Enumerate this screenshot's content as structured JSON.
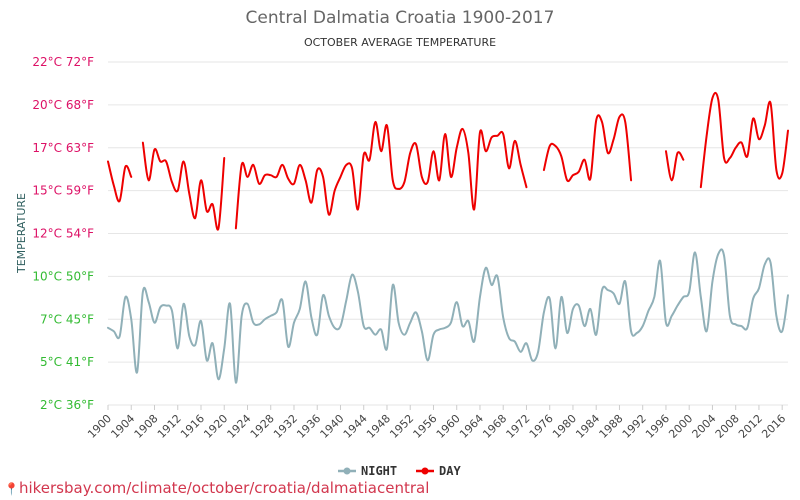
{
  "chart_data": {
    "type": "line",
    "title": "Central Dalmatia Croatia 1900-2017",
    "subtitle": "OCTOBER AVERAGE TEMPERATURE",
    "ylabel": "TEMPERATURE",
    "ylim": [
      2,
      22
    ],
    "y_ticks": [
      {
        "value": 2,
        "label": "2°C 36°F",
        "color": "#33bb33"
      },
      {
        "value": 4.5,
        "label": "5°C 41°F",
        "color": "#33bb33"
      },
      {
        "value": 7,
        "label": "7°C 45°F",
        "color": "#33bb33"
      },
      {
        "value": 9.5,
        "label": "10°C 50°F",
        "color": "#33bb33"
      },
      {
        "value": 12,
        "label": "12°C 54°F",
        "color": "#dd1166"
      },
      {
        "value": 14.5,
        "label": "15°C 59°F",
        "color": "#dd1166"
      },
      {
        "value": 17,
        "label": "17°C 63°F",
        "color": "#dd1166"
      },
      {
        "value": 19.5,
        "label": "20°C 68°F",
        "color": "#dd1166"
      },
      {
        "value": 22,
        "label": "22°C 72°F",
        "color": "#dd1166"
      }
    ],
    "x_start": 1900,
    "x_end": 2017,
    "x_ticks": [
      1900,
      1904,
      1908,
      1912,
      1916,
      1920,
      1924,
      1928,
      1932,
      1936,
      1940,
      1944,
      1948,
      1952,
      1956,
      1960,
      1964,
      1968,
      1972,
      1976,
      1980,
      1984,
      1988,
      1992,
      1996,
      2000,
      2004,
      2008,
      2012,
      2016
    ],
    "grid": true,
    "legend_position": "bottom-center",
    "series": [
      {
        "name": "NIGHT",
        "color": "#90b0b8",
        "years": [
          1900,
          1901,
          1902,
          1903,
          1904,
          1905,
          1906,
          1907,
          1908,
          1909,
          1910,
          1911,
          1912,
          1913,
          1914,
          1915,
          1916,
          1917,
          1918,
          1919,
          1920,
          1921,
          1922,
          1923,
          1924,
          1925,
          1926,
          1927,
          1928,
          1929,
          1930,
          1931,
          1932,
          1933,
          1934,
          1935,
          1936,
          1937,
          1938,
          1939,
          1940,
          1941,
          1942,
          1943,
          1944,
          1945,
          1946,
          1947,
          1948,
          1949,
          1950,
          1951,
          1952,
          1953,
          1954,
          1955,
          1956,
          1957,
          1958,
          1959,
          1960,
          1961,
          1962,
          1963,
          1964,
          1965,
          1966,
          1967,
          1968,
          1969,
          1970,
          1971,
          1972,
          1973,
          1974,
          1975,
          1976,
          1977,
          1978,
          1979,
          1980,
          1981,
          1982,
          1983,
          1984,
          1985,
          1986,
          1987,
          1988,
          1989,
          1990,
          1991,
          1992,
          1993,
          1994,
          1995,
          1996,
          1997,
          1998,
          1999,
          2000,
          2001,
          2002,
          2003,
          2004,
          2005,
          2006,
          2007,
          2008,
          2009,
          2010,
          2011,
          2012,
          2013,
          2014,
          2015,
          2016,
          2017
        ],
        "values": [
          6.5,
          6.3,
          6.0,
          8.3,
          7.0,
          3.9,
          8.6,
          8.0,
          6.8,
          7.7,
          7.8,
          7.5,
          5.3,
          7.9,
          6.0,
          5.5,
          6.9,
          4.6,
          5.6,
          3.5,
          5.3,
          7.9,
          3.3,
          7.2,
          7.9,
          6.8,
          6.7,
          7.0,
          7.2,
          7.4,
          8.1,
          5.4,
          6.8,
          7.6,
          9.2,
          7.1,
          6.1,
          8.4,
          7.2,
          6.5,
          6.6,
          8.1,
          9.6,
          8.6,
          6.6,
          6.5,
          6.1,
          6.4,
          5.3,
          9.0,
          6.8,
          6.1,
          6.8,
          7.4,
          6.3,
          4.6,
          6.1,
          6.4,
          6.5,
          6.8,
          8.0,
          6.6,
          6.9,
          5.7,
          8.3,
          10.0,
          9.0,
          9.5,
          7.1,
          5.9,
          5.7,
          5.1,
          5.6,
          4.6,
          5.1,
          7.4,
          8.2,
          5.3,
          8.3,
          6.2,
          7.6,
          7.8,
          6.6,
          7.6,
          6.1,
          8.7,
          8.7,
          8.5,
          7.9,
          9.2,
          6.3,
          6.2,
          6.6,
          7.5,
          8.3,
          10.4,
          6.8,
          7.2,
          7.8,
          8.3,
          8.6,
          10.9,
          8.3,
          6.3,
          9.2,
          10.8,
          10.7,
          7.2,
          6.7,
          6.6,
          6.5,
          8.2,
          8.8,
          10.2,
          10.3,
          7.2,
          6.3,
          8.4
        ]
      },
      {
        "name": "DAY",
        "color": "#ee0000",
        "years": [
          1900,
          1901,
          1902,
          1903,
          1904,
          null,
          1906,
          1907,
          1908,
          1909,
          1910,
          1911,
          1912,
          1913,
          1914,
          1915,
          1916,
          1917,
          1918,
          1919,
          1920,
          1921,
          null,
          1922,
          1923,
          1924,
          1925,
          1926,
          1927,
          1928,
          1929,
          1930,
          1931,
          1932,
          1933,
          1934,
          1935,
          1936,
          1937,
          1938,
          1939,
          1940,
          1941,
          1942,
          1943,
          1944,
          1945,
          1946,
          1947,
          1948,
          1949,
          1950,
          1951,
          1952,
          1953,
          1954,
          1955,
          1956,
          1957,
          1958,
          1959,
          1960,
          1961,
          1962,
          1963,
          1964,
          1965,
          1966,
          1967,
          1968,
          1969,
          1970,
          1971,
          1972,
          1973,
          null,
          1975,
          1976,
          1977,
          1978,
          1979,
          1980,
          1981,
          1982,
          1983,
          1984,
          1985,
          1986,
          1987,
          1988,
          1989,
          1990,
          1991,
          null,
          1996,
          1997,
          1998,
          1999,
          2000,
          null,
          2002,
          2003,
          2004,
          2005,
          2006,
          2007,
          2008,
          2009,
          2010,
          2011,
          2012,
          2013,
          2014,
          2015,
          2016,
          2017
        ],
        "values": [
          16.2,
          14.8,
          13.9,
          15.9,
          15.3,
          null,
          17.3,
          15.1,
          16.9,
          16.2,
          16.2,
          15.0,
          14.5,
          16.2,
          14.3,
          12.9,
          15.1,
          13.3,
          13.7,
          12.3,
          16.4,
          null,
          null,
          12.3,
          16.0,
          15.3,
          16.0,
          14.9,
          15.4,
          15.4,
          15.3,
          16.0,
          15.2,
          14.9,
          16.0,
          15.1,
          13.8,
          15.7,
          15.3,
          13.1,
          14.5,
          15.3,
          16.0,
          15.8,
          13.4,
          16.6,
          16.3,
          18.5,
          16.8,
          18.3,
          15.1,
          14.6,
          15.0,
          16.7,
          17.2,
          15.3,
          15.0,
          16.8,
          15.1,
          17.8,
          15.3,
          17.0,
          18.1,
          16.7,
          13.4,
          17.9,
          16.8,
          17.6,
          17.7,
          17.8,
          15.8,
          17.4,
          16.0,
          14.7,
          null,
          13.9,
          15.7,
          17.1,
          17.1,
          16.5,
          15.1,
          15.4,
          15.6,
          16.3,
          15.2,
          18.6,
          18.5,
          16.7,
          17.5,
          18.8,
          18.5,
          15.1,
          null,
          15.9,
          16.8,
          15.1,
          16.7,
          16.3,
          null,
          16.7,
          14.7,
          17.7,
          19.9,
          19.8,
          16.4,
          16.4,
          17.0,
          17.3,
          16.5,
          18.7,
          17.5,
          18.3,
          19.6,
          15.7,
          15.5,
          18.0
        ]
      }
    ]
  },
  "footer": {
    "pin_icon": "map-pin-icon",
    "text": "hikersbay.com/climate/october/croatia/dalmatiacentral"
  }
}
